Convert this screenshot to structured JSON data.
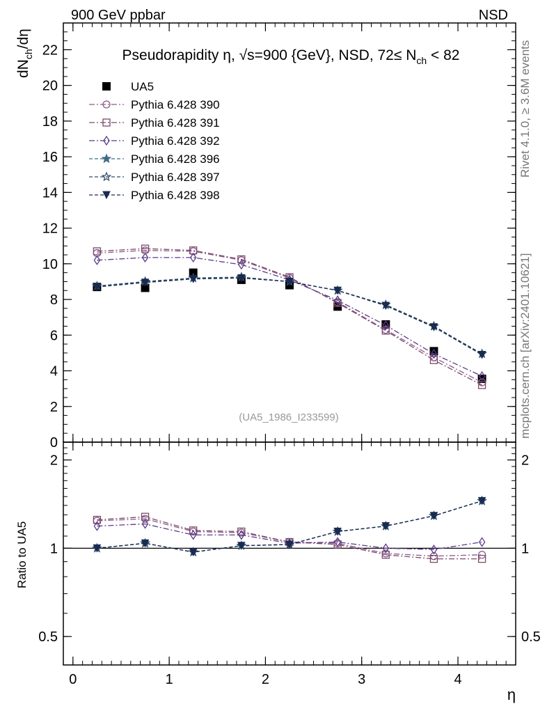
{
  "header": {
    "left": "900 GeV ppbar",
    "right": "NSD"
  },
  "side_texts": {
    "rivet": "Rivet 4.1.0, ≥ 3.6M events",
    "mcplots": "mcplots.cern.ch [arXiv:2401.10621]"
  },
  "colors": {
    "UA5": "#000000",
    "390": "#8b5a8b",
    "391": "#7a4a6a",
    "392": "#5b3a8b",
    "396": "#3f6a8a",
    "397": "#2d4a6a",
    "398": "#1a2a50"
  },
  "chart_data": [
    {
      "type": "line",
      "title": "Pseudorapidity η, √s=900 {GeV}, NSD, 72≤ N",
      "title_sub": "ch",
      "title_tail": " < 82",
      "ylabel": "dN",
      "ylabel_sub": "ch",
      "ylabel_tail": "/dη",
      "xlim": [
        -0.1,
        4.6
      ],
      "ylim": [
        0,
        23.5
      ],
      "yticks": [
        0,
        2,
        4,
        6,
        8,
        10,
        12,
        14,
        16,
        18,
        20,
        22
      ],
      "yticklabels": [
        "0",
        "2",
        "4",
        "6",
        "8",
        "10",
        "12",
        "14",
        "16",
        "18",
        "20",
        "22"
      ],
      "watermark": "(UA5_1986_I233599)",
      "x": [
        0.25,
        0.75,
        1.25,
        1.75,
        2.25,
        2.75,
        3.25,
        3.75,
        4.25
      ],
      "series": [
        {
          "name": "UA5",
          "key": "UA5",
          "values": [
            8.7,
            8.65,
            9.5,
            9.1,
            8.8,
            7.6,
            6.6,
            5.1,
            3.55
          ]
        },
        {
          "name": "Pythia 6.428 390",
          "key": "390",
          "values": [
            10.6,
            10.75,
            10.7,
            10.2,
            9.2,
            7.85,
            6.3,
            4.75,
            3.35
          ]
        },
        {
          "name": "Pythia 6.428 391",
          "key": "391",
          "values": [
            10.7,
            10.85,
            10.75,
            10.25,
            9.25,
            7.8,
            6.25,
            4.6,
            3.2
          ]
        },
        {
          "name": "Pythia 6.428 392",
          "key": "392",
          "values": [
            10.2,
            10.35,
            10.35,
            9.95,
            9.1,
            7.95,
            6.55,
            4.95,
            3.7
          ]
        },
        {
          "name": "Pythia 6.428 396",
          "key": "396",
          "values": [
            8.75,
            9.0,
            9.2,
            9.25,
            9.0,
            8.5,
            7.7,
            6.5,
            4.95
          ]
        },
        {
          "name": "Pythia 6.428 397",
          "key": "397",
          "values": [
            8.75,
            9.0,
            9.2,
            9.25,
            9.0,
            8.5,
            7.7,
            6.5,
            4.95
          ]
        },
        {
          "name": "Pythia 6.428 398",
          "key": "398",
          "values": [
            8.7,
            8.95,
            9.15,
            9.2,
            9.0,
            8.5,
            7.65,
            6.45,
            4.9
          ]
        }
      ]
    },
    {
      "type": "line",
      "title": "",
      "ylabel": "Ratio to UA5",
      "xlabel": "η",
      "xlim": [
        -0.1,
        4.6
      ],
      "ylim": [
        0.4,
        2.3
      ],
      "log_y": true,
      "xticks": [
        0,
        1,
        2,
        3,
        4
      ],
      "xticklabels": [
        "0",
        "1",
        "2",
        "3",
        "4"
      ],
      "yticks": [
        0.5,
        1,
        2
      ],
      "yticklabels": [
        "0.5",
        "1",
        "2"
      ],
      "x": [
        0.25,
        0.75,
        1.25,
        1.75,
        2.25,
        2.75,
        3.25,
        3.75,
        4.25
      ],
      "series": [
        {
          "name": "Pythia 6.428 390",
          "key": "390",
          "values": [
            1.24,
            1.26,
            1.14,
            1.13,
            1.05,
            1.04,
            0.96,
            0.94,
            0.95
          ]
        },
        {
          "name": "Pythia 6.428 391",
          "key": "391",
          "values": [
            1.25,
            1.28,
            1.15,
            1.14,
            1.05,
            1.03,
            0.95,
            0.92,
            0.92
          ]
        },
        {
          "name": "Pythia 6.428 392",
          "key": "392",
          "values": [
            1.19,
            1.21,
            1.11,
            1.11,
            1.04,
            1.05,
            1.0,
            0.99,
            1.05
          ]
        },
        {
          "name": "Pythia 6.428 396",
          "key": "396",
          "values": [
            1.0,
            1.04,
            0.97,
            1.02,
            1.03,
            1.14,
            1.19,
            1.29,
            1.45
          ]
        },
        {
          "name": "Pythia 6.428 397",
          "key": "397",
          "values": [
            1.0,
            1.04,
            0.97,
            1.02,
            1.03,
            1.14,
            1.19,
            1.29,
            1.45
          ]
        },
        {
          "name": "Pythia 6.428 398",
          "key": "398",
          "values": [
            1.0,
            1.04,
            0.97,
            1.02,
            1.03,
            1.14,
            1.19,
            1.29,
            1.45
          ]
        }
      ]
    }
  ]
}
